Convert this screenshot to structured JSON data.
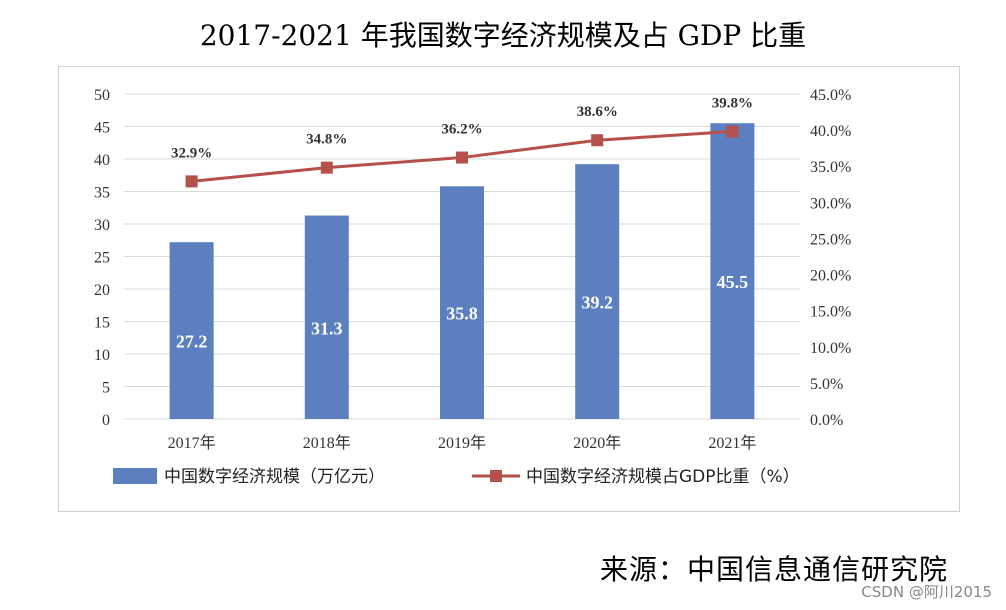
{
  "title": "2017-2021 年我国数字经济规模及占 GDP 比重",
  "source": "来源：中国信息通信研究院",
  "watermark": "CSDN @阿川2015",
  "colors": {
    "bar": "#5b7fbf",
    "line": "#b5504a",
    "grid": "#d9d9d9"
  },
  "chart_data": {
    "type": "bar",
    "categories": [
      "2017年",
      "2018年",
      "2019年",
      "2020年",
      "2021年"
    ],
    "series": [
      {
        "name": "中国数字经济规模（万亿元）",
        "type": "bar",
        "axis": "left",
        "values": [
          27.2,
          31.3,
          35.8,
          39.2,
          45.5
        ],
        "labels": [
          "27.2",
          "31.3",
          "35.8",
          "39.2",
          "45.5"
        ]
      },
      {
        "name": "中国数字经济规模占GDP比重（%）",
        "type": "line",
        "axis": "right",
        "values": [
          32.9,
          34.8,
          36.2,
          38.6,
          39.8
        ],
        "labels": [
          "32.9%",
          "34.8%",
          "36.2%",
          "38.6%",
          "39.8%"
        ]
      }
    ],
    "y_left": {
      "min": 0,
      "max": 50,
      "step": 5,
      "ticks": [
        "0",
        "5",
        "10",
        "15",
        "20",
        "25",
        "30",
        "35",
        "40",
        "45",
        "50"
      ]
    },
    "y_right": {
      "min": 0,
      "max": 45,
      "step": 5,
      "ticks": [
        "0.0%",
        "5.0%",
        "10.0%",
        "15.0%",
        "20.0%",
        "25.0%",
        "30.0%",
        "35.0%",
        "40.0%",
        "45.0%"
      ]
    },
    "grid": true,
    "legend_position": "bottom"
  }
}
